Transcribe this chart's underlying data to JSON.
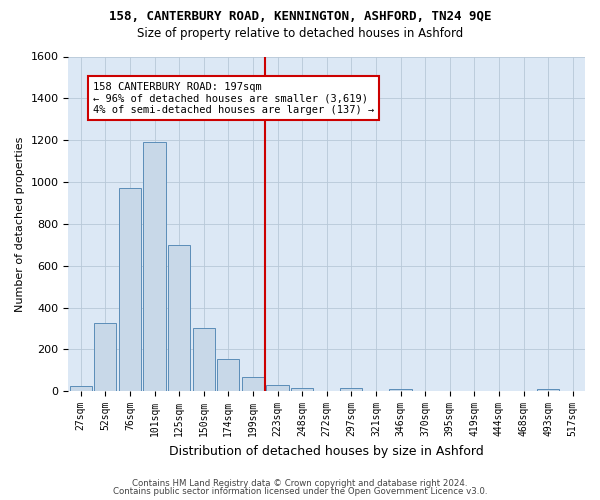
{
  "title": "158, CANTERBURY ROAD, KENNINGTON, ASHFORD, TN24 9QE",
  "subtitle": "Size of property relative to detached houses in Ashford",
  "xlabel": "Distribution of detached houses by size in Ashford",
  "ylabel": "Number of detached properties",
  "bar_labels": [
    "27sqm",
    "52sqm",
    "76sqm",
    "101sqm",
    "125sqm",
    "150sqm",
    "174sqm",
    "199sqm",
    "223sqm",
    "248sqm",
    "272sqm",
    "297sqm",
    "321sqm",
    "346sqm",
    "370sqm",
    "395sqm",
    "419sqm",
    "444sqm",
    "468sqm",
    "493sqm",
    "517sqm"
  ],
  "bar_values": [
    25,
    325,
    970,
    1190,
    700,
    300,
    155,
    70,
    30,
    15,
    0,
    15,
    0,
    12,
    0,
    0,
    0,
    0,
    0,
    12,
    0
  ],
  "bar_color": "#c8d8e8",
  "bar_edge_color": "#5b8db8",
  "vline_x_index": 7.5,
  "vline_color": "#cc0000",
  "annotation_title": "158 CANTERBURY ROAD: 197sqm",
  "annotation_line1": "← 96% of detached houses are smaller (3,619)",
  "annotation_line2": "4% of semi-detached houses are larger (137) →",
  "annotation_box_color": "#ffffff",
  "annotation_border_color": "#cc0000",
  "ylim": [
    0,
    1600
  ],
  "yticks": [
    0,
    200,
    400,
    600,
    800,
    1000,
    1200,
    1400,
    1600
  ],
  "bg_color": "#dce8f5",
  "grid_color": "#b8c8d8",
  "footer1": "Contains HM Land Registry data © Crown copyright and database right 2024.",
  "footer2": "Contains public sector information licensed under the Open Government Licence v3.0."
}
